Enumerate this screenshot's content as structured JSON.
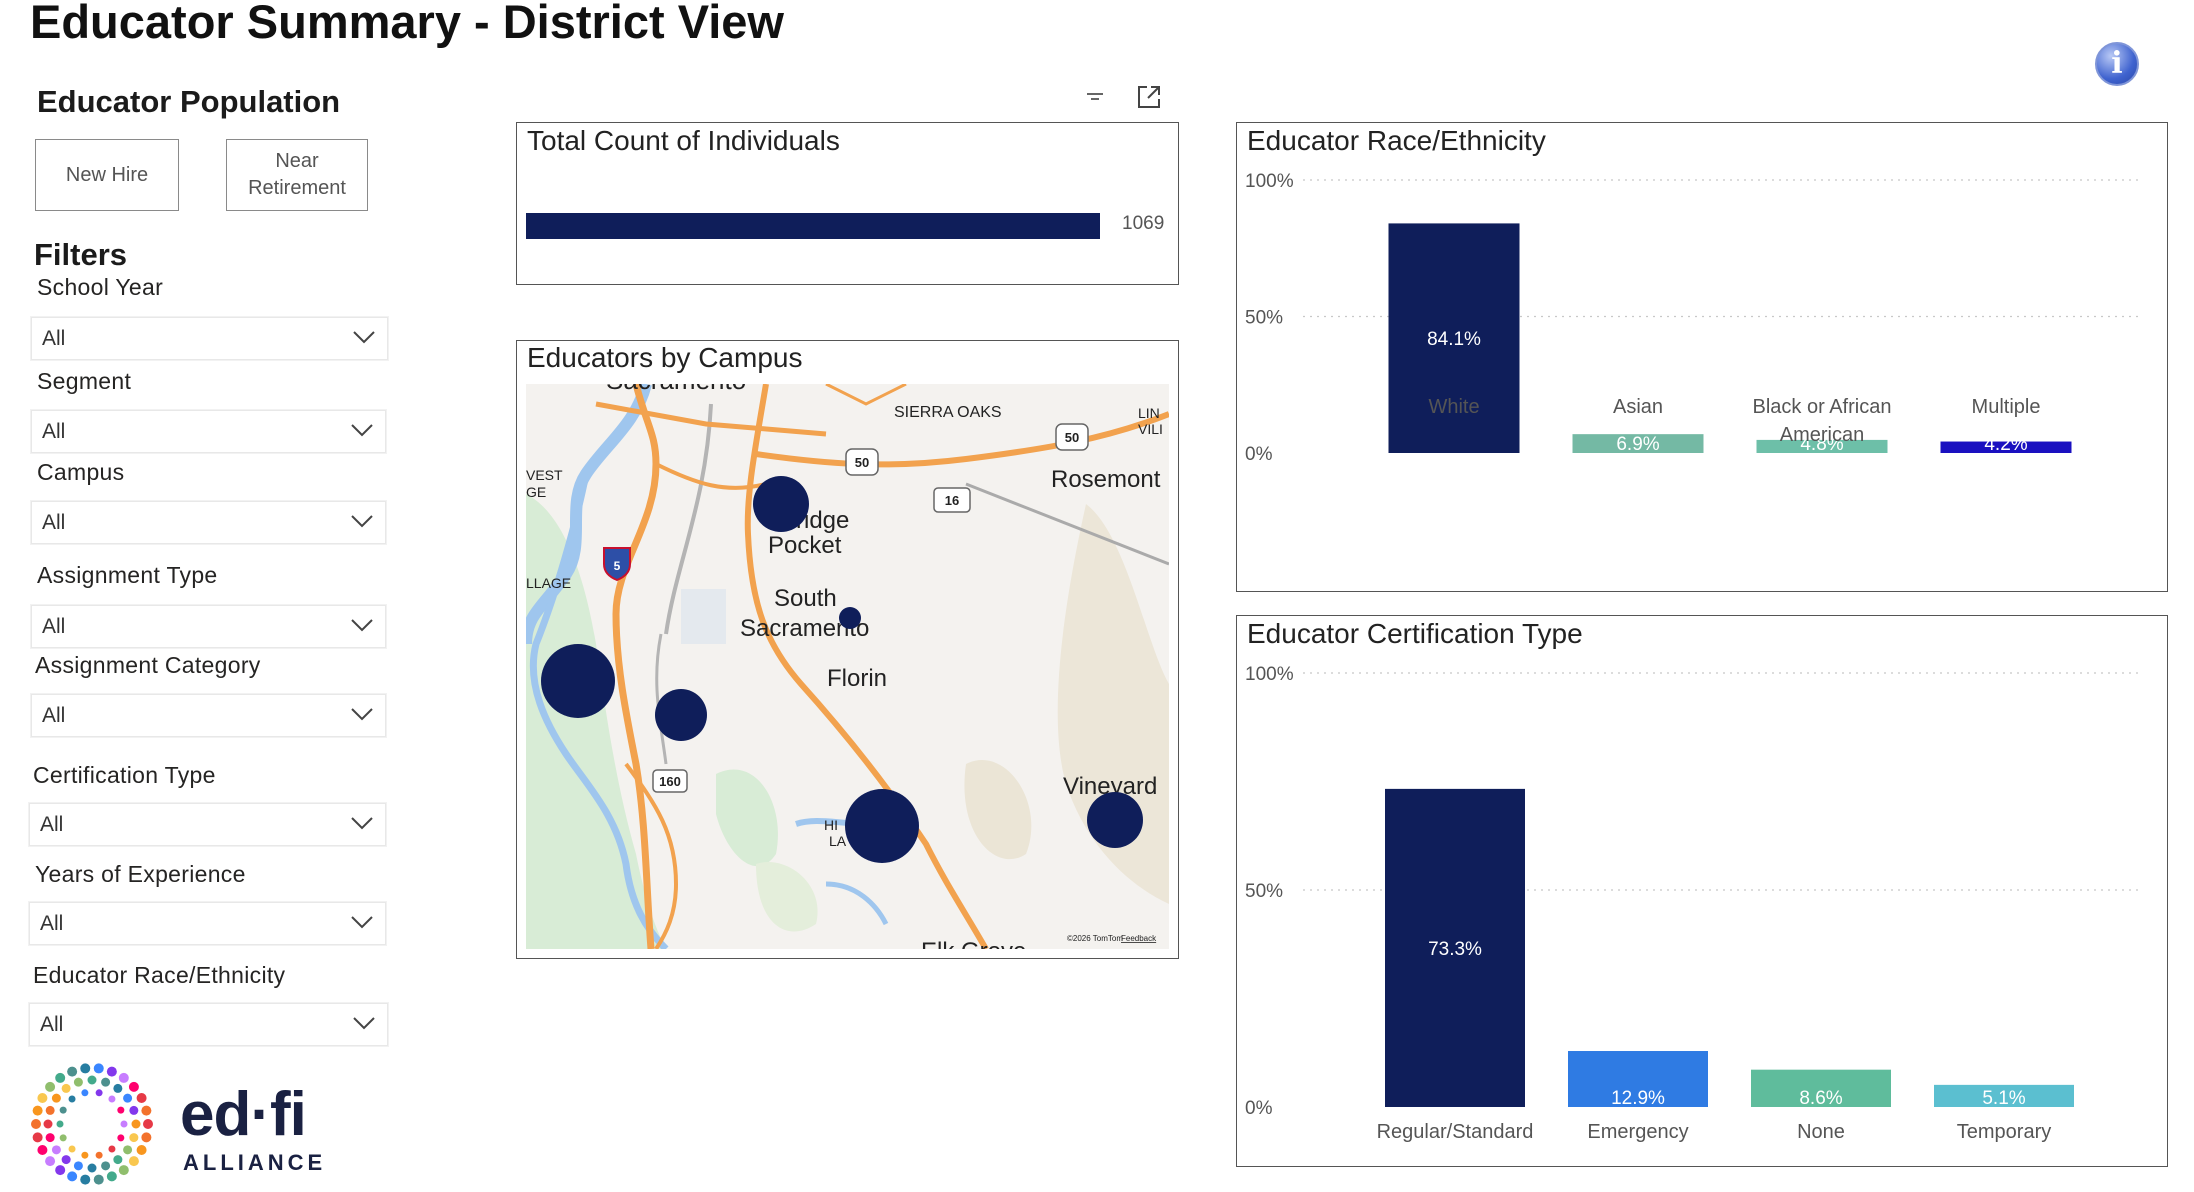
{
  "page": {
    "title": "Educator Summary - District View"
  },
  "population": {
    "heading": "Educator Population",
    "buttons": [
      {
        "label": "New Hire"
      },
      {
        "label": "Near Retirement"
      }
    ]
  },
  "filters": {
    "heading": "Filters",
    "items": [
      {
        "label": "School Year",
        "value": "All"
      },
      {
        "label": "Segment",
        "value": "All"
      },
      {
        "label": "Campus",
        "value": "All"
      },
      {
        "label": "Assignment Type",
        "value": "All"
      },
      {
        "label": "Assignment Category",
        "value": "All"
      },
      {
        "label": "Certification Type",
        "value": "All"
      },
      {
        "label": "Years of Experience",
        "value": "All"
      },
      {
        "label": "Educator Race/Ethnicity",
        "value": "All"
      }
    ]
  },
  "logo": {
    "wordmark": "ed·fi",
    "tagline": "ALLIANCE"
  },
  "icons": {
    "info": "info-icon",
    "filter": "filter-lines-icon",
    "focus": "focus-mode-icon",
    "chevron": "chevron-down-icon"
  },
  "colors": {
    "navy": "#0f1e5a",
    "teal": "#6dbba6",
    "blue": "#2f6fe0",
    "purple": "#1a10c0",
    "skyteal": "#5bbfd0"
  },
  "total_count": {
    "title": "Total Count of Individuals",
    "value": 1069,
    "value_label": "1069"
  },
  "campus_map": {
    "title": "Educators by Campus",
    "place_labels": [
      "Sacramento",
      "SIERRA OAKS",
      "Rosemont",
      "Pocket",
      "ridge",
      "South",
      "Sacramento",
      "Florin",
      "Vineyard",
      "VEST",
      "GE",
      "LLAGE",
      "HI",
      "LA",
      "Elk Grove",
      "LIN",
      "VILI"
    ],
    "route_shields": [
      "50",
      "50",
      "16",
      "5",
      "160"
    ],
    "attribution": "©2026 TomTom",
    "feedback": "Feedback"
  },
  "chart_data": [
    {
      "type": "bar",
      "title": "Educator Race/Ethnicity",
      "categories": [
        "White",
        "Asian",
        "Black or African American",
        "Multiple"
      ],
      "values": [
        84.1,
        6.9,
        4.8,
        4.2
      ],
      "value_labels": [
        "84.1%",
        "6.9%",
        "4.8%",
        "4.2%"
      ],
      "colors": [
        "#0f1e5a",
        "#74b9a4",
        "#6dbfa8",
        "#1a10c0"
      ],
      "ylim": [
        0,
        100
      ],
      "yticks": [
        "0%",
        "50%",
        "100%"
      ],
      "grid": true
    },
    {
      "type": "bar",
      "title": "Educator Certification Type",
      "categories": [
        "Regular/Standard",
        "Emergency",
        "None",
        "Temporary"
      ],
      "values": [
        73.3,
        12.9,
        8.6,
        5.1
      ],
      "value_labels": [
        "73.3%",
        "12.9%",
        "8.6%",
        "5.1%"
      ],
      "colors": [
        "#0f1e5a",
        "#2f7be3",
        "#5fbc9c",
        "#5bbfd0"
      ],
      "ylim": [
        0,
        100
      ],
      "yticks": [
        "0%",
        "50%",
        "100%"
      ],
      "grid": true
    }
  ]
}
